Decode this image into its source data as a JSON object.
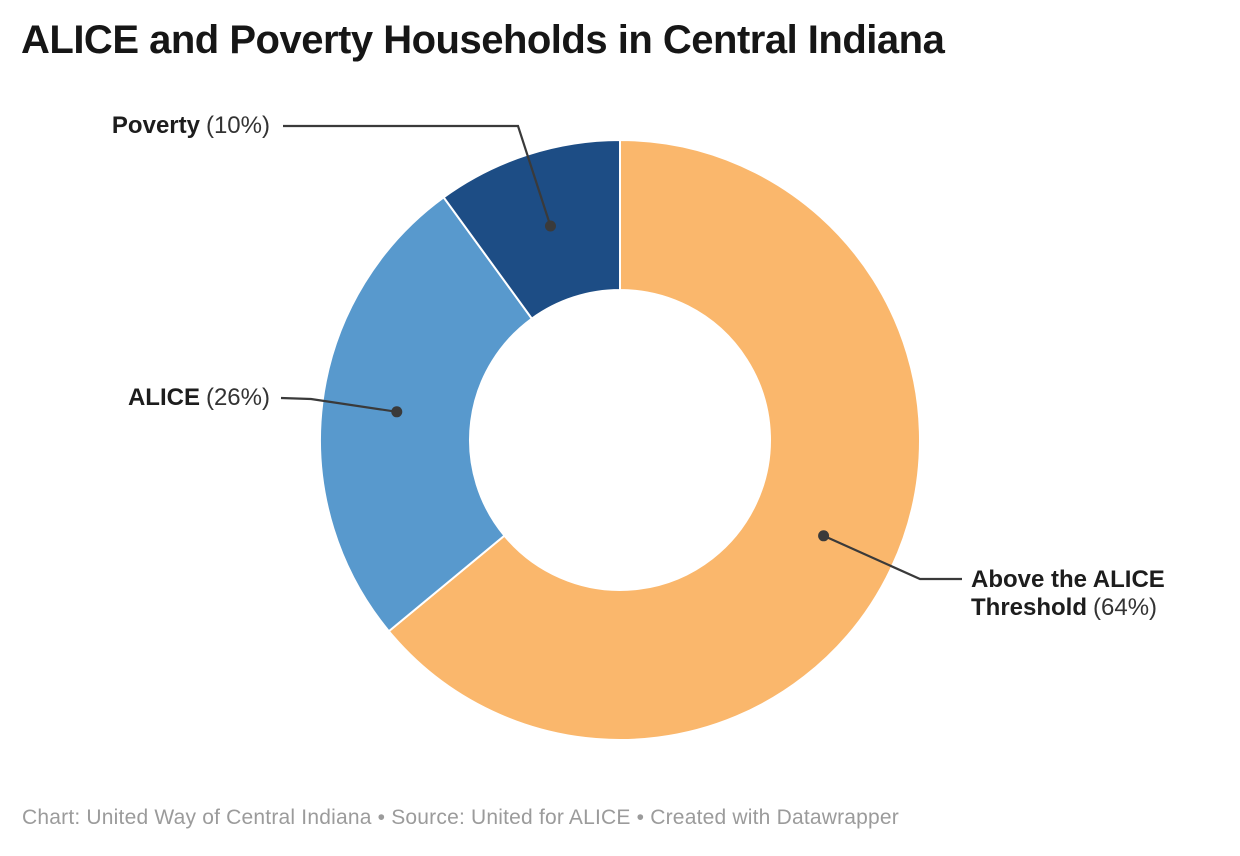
{
  "chart_data": {
    "type": "pie",
    "subtype": "donut",
    "title": "ALICE and Poverty Households in Central Indiana",
    "unit": "%",
    "direction": "clockwise",
    "start_angle_deg": 0,
    "inner_radius_ratio": 0.5,
    "legend_position": "none",
    "slices": [
      {
        "label": "Above the ALICE Threshold",
        "value": 64,
        "pct_label": "(64%)",
        "color": "#fab76c"
      },
      {
        "label": "ALICE",
        "value": 26,
        "pct_label": "(26%)",
        "color": "#5899cd"
      },
      {
        "label": "Poverty",
        "value": 10,
        "pct_label": "(10%)",
        "color": "#1d4d85"
      }
    ]
  },
  "footer": {
    "text": "Chart: United Way of Central Indiana • Source: United for ALICE • Created with Datawrapper"
  },
  "style": {
    "connector_color": "#3a3a3a",
    "separator_color": "#ffffff",
    "background": "#ffffff"
  }
}
